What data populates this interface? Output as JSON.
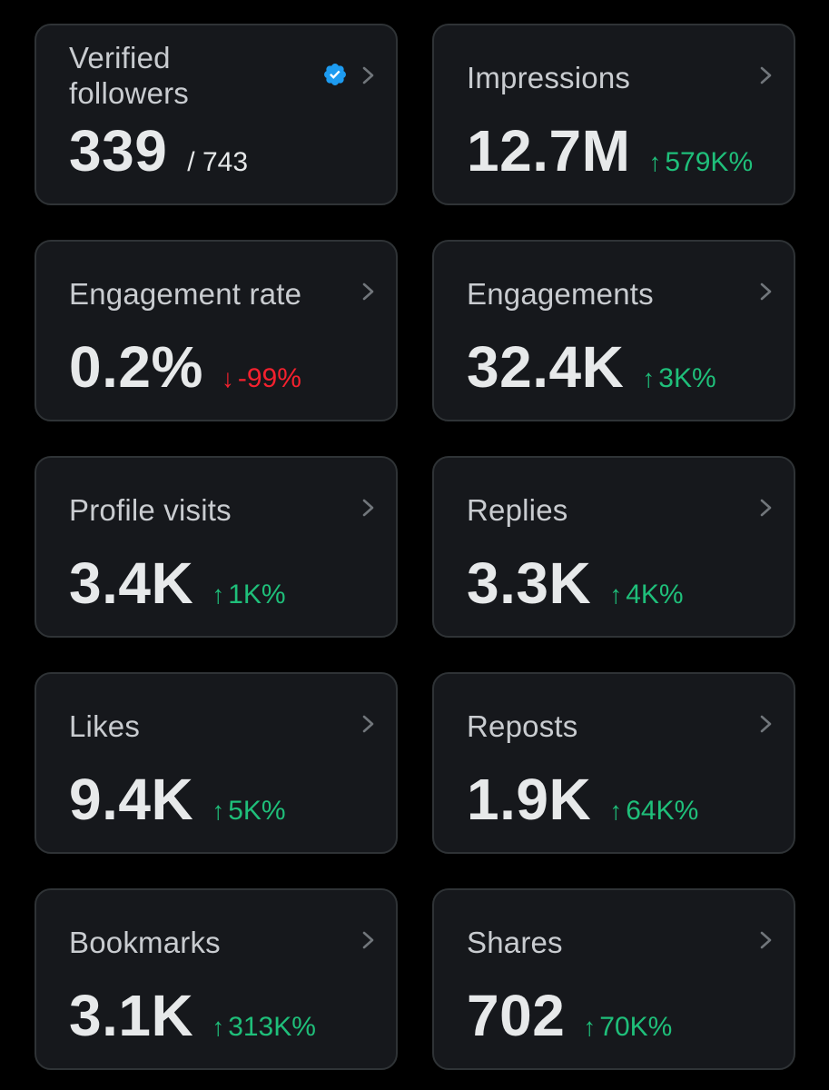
{
  "colors": {
    "background": "#000000",
    "card": "#16181c",
    "card_border": "#2f3336",
    "label": "#c9ccd0",
    "value": "#e7e9ea",
    "up": "#1fbf7a",
    "down": "#f4212e",
    "verified_badge": "#1d9bf0"
  },
  "icons": {
    "chevron": "chevron-right-icon",
    "verified": "verified-badge-icon",
    "up": "arrow-up-icon",
    "down": "arrow-down-icon"
  },
  "cards": [
    {
      "label": "Verified followers",
      "value": "339",
      "sub": "/ 743"
    },
    {
      "label": "Impressions",
      "value": "12.7M",
      "change_arrow": "↑",
      "change": "579K%",
      "direction": "up"
    },
    {
      "label": "Engagement rate",
      "value": "0.2%",
      "change_arrow": "↓",
      "change": "-99%",
      "direction": "down"
    },
    {
      "label": "Engagements",
      "value": "32.4K",
      "change_arrow": "↑",
      "change": "3K%",
      "direction": "up"
    },
    {
      "label": "Profile visits",
      "value": "3.4K",
      "change_arrow": "↑",
      "change": "1K%",
      "direction": "up"
    },
    {
      "label": "Replies",
      "value": "3.3K",
      "change_arrow": "↑",
      "change": "4K%",
      "direction": "up"
    },
    {
      "label": "Likes",
      "value": "9.4K",
      "change_arrow": "↑",
      "change": "5K%",
      "direction": "up"
    },
    {
      "label": "Reposts",
      "value": "1.9K",
      "change_arrow": "↑",
      "change": "64K%",
      "direction": "up"
    },
    {
      "label": "Bookmarks",
      "value": "3.1K",
      "change_arrow": "↑",
      "change": "313K%",
      "direction": "up"
    },
    {
      "label": "Shares",
      "value": "702",
      "change_arrow": "↑",
      "change": "70K%",
      "direction": "up"
    }
  ]
}
